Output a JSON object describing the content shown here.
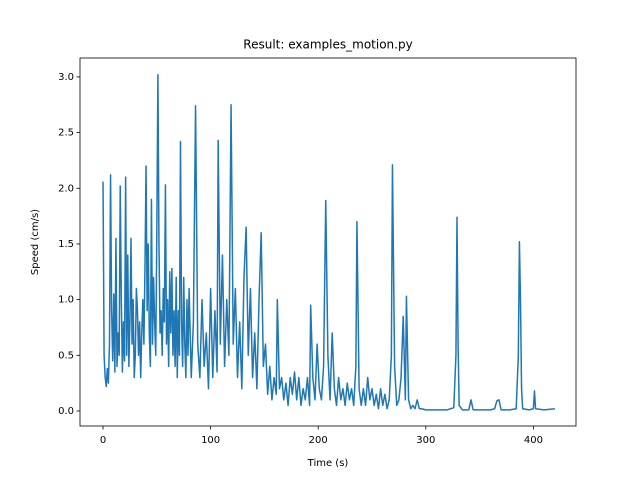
{
  "chart_data": {
    "type": "line",
    "title": "Result: examples_motion.py",
    "xlabel": "Time (s)",
    "ylabel": "Speed (cm/s)",
    "color": "#1f77b4",
    "xlim": [
      -21.4,
      439.6
    ],
    "ylim": [
      -0.135,
      3.17
    ],
    "xticks": [
      0,
      100,
      200,
      300,
      400
    ],
    "yticks": [
      {
        "value": 0,
        "label": "0.0"
      },
      {
        "value": 0.5,
        "label": "0.5"
      },
      {
        "value": 1,
        "label": "1.0"
      },
      {
        "value": 1.5,
        "label": "1.5"
      },
      {
        "value": 2,
        "label": "2.0"
      },
      {
        "value": 2.5,
        "label": "2.5"
      },
      {
        "value": 3,
        "label": "3.0"
      }
    ],
    "x": [
      0,
      1,
      2,
      3,
      4,
      5,
      6,
      7,
      8,
      9,
      10,
      11,
      12,
      13,
      14,
      15,
      16,
      17,
      18,
      19,
      20,
      21,
      22,
      23,
      24,
      25,
      26,
      27,
      28,
      29,
      30,
      31,
      32,
      33,
      34,
      35,
      36,
      37,
      38,
      39,
      40,
      41,
      42,
      43,
      44,
      45,
      46,
      47,
      48,
      49,
      50,
      51,
      52,
      53,
      54,
      55,
      56,
      57,
      58,
      59,
      60,
      61,
      62,
      63,
      64,
      65,
      66,
      67,
      68,
      69,
      70,
      71,
      72,
      73,
      74,
      75,
      76,
      77,
      78,
      79,
      80,
      82,
      84,
      86,
      88,
      90,
      92,
      94,
      96,
      98,
      100,
      102,
      104,
      106,
      107,
      109,
      111,
      113,
      115,
      117,
      119,
      121,
      123,
      125,
      127,
      129,
      131,
      133,
      135,
      137,
      139,
      141,
      143,
      145,
      147,
      149,
      151,
      153,
      155,
      157,
      159,
      161,
      162,
      164,
      166,
      168,
      170,
      172,
      174,
      176,
      178,
      180,
      182,
      184,
      186,
      188,
      190,
      192,
      193,
      195,
      197,
      199,
      201,
      203,
      205,
      207,
      209,
      211,
      213,
      215,
      217,
      219,
      221,
      223,
      225,
      227,
      229,
      231,
      233,
      235,
      236,
      238,
      240,
      242,
      244,
      246,
      248,
      250,
      252,
      254,
      256,
      258,
      260,
      262,
      264,
      266,
      268,
      269,
      271,
      273,
      275,
      277,
      279,
      281,
      282,
      284,
      286,
      288,
      290,
      292,
      294,
      296,
      300,
      310,
      320,
      326,
      328,
      329,
      330,
      331,
      334,
      340,
      342,
      344,
      350,
      360,
      364,
      366,
      368,
      370,
      378,
      384,
      386,
      387,
      388,
      389,
      390,
      396,
      400,
      401,
      402,
      410,
      420
    ],
    "values": [
      2.06,
      0.5,
      0.3,
      0.22,
      0.38,
      0.25,
      0.6,
      2.12,
      0.9,
      0.45,
      1.05,
      0.35,
      1.55,
      0.4,
      0.7,
      0.5,
      2.02,
      1.0,
      0.35,
      0.8,
      0.45,
      2.1,
      0.5,
      1.4,
      0.4,
      0.8,
      1.55,
      0.6,
      1.0,
      0.3,
      0.5,
      1.1,
      0.9,
      0.5,
      0.8,
      0.3,
      0.7,
      1.0,
      0.6,
      1.3,
      2.2,
      0.9,
      1.5,
      0.7,
      0.4,
      1.9,
      0.6,
      1.2,
      0.8,
      0.5,
      1.6,
      3.02,
      1.5,
      0.7,
      0.9,
      0.5,
      1.1,
      0.8,
      2.03,
      0.6,
      1.0,
      0.4,
      1.25,
      0.7,
      1.28,
      0.5,
      0.9,
      0.4,
      1.2,
      0.3,
      0.9,
      0.5,
      2.42,
      0.8,
      0.4,
      1.2,
      0.6,
      0.3,
      1.0,
      0.5,
      1.1,
      0.3,
      0.8,
      2.74,
      0.6,
      0.3,
      1.0,
      0.4,
      0.7,
      0.2,
      1.1,
      0.3,
      0.9,
      0.35,
      2.43,
      0.6,
      1.4,
      0.4,
      1.0,
      0.5,
      2.75,
      0.6,
      1.1,
      0.3,
      0.8,
      0.2,
      1.2,
      1.65,
      0.5,
      1.1,
      0.3,
      0.7,
      0.2,
      1.0,
      1.6,
      0.4,
      0.6,
      0.15,
      0.4,
      0.1,
      0.3,
      0.15,
      1.0,
      0.2,
      0.3,
      0.1,
      0.25,
      0.05,
      0.3,
      0.15,
      0.35,
      0.1,
      0.3,
      0.05,
      0.2,
      0.1,
      0.3,
      0.05,
      0.95,
      0.3,
      0.1,
      0.6,
      0.2,
      0.1,
      0.4,
      1.89,
      0.5,
      0.1,
      0.7,
      0.2,
      0.05,
      0.3,
      0.1,
      0.2,
      0.05,
      0.25,
      0.1,
      0.2,
      0.05,
      0.4,
      1.7,
      0.2,
      0.05,
      0.2,
      0.05,
      0.3,
      0.1,
      0.2,
      0.05,
      0.15,
      0.02,
      0.2,
      0.05,
      0.15,
      0.02,
      0.1,
      0.5,
      2.21,
      0.4,
      0.05,
      0.1,
      0.3,
      0.85,
      0.1,
      1.03,
      0.1,
      0.02,
      0.05,
      0.02,
      0.1,
      0.02,
      0.02,
      0.01,
      0.01,
      0.01,
      0.03,
      0.5,
      1.74,
      0.6,
      0.05,
      0.01,
      0.01,
      0.1,
      0.01,
      0.01,
      0.01,
      0.02,
      0.09,
      0.1,
      0.01,
      0.01,
      0.02,
      0.5,
      1.52,
      1.0,
      0.2,
      0.02,
      0.01,
      0.02,
      0.18,
      0.02,
      0.01,
      0.02
    ]
  }
}
